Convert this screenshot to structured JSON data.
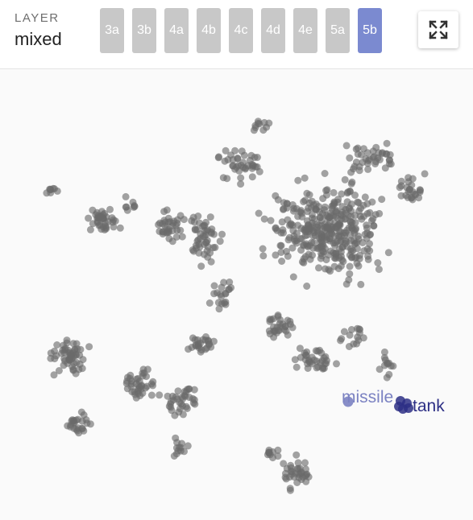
{
  "header": {
    "layer_caption": "LAYER",
    "layer_value": "mixed",
    "layers": [
      "3a",
      "3b",
      "4a",
      "4b",
      "4c",
      "4d",
      "4e",
      "5a",
      "5b"
    ],
    "active_layer": "5b"
  },
  "colors": {
    "active_button": "#7b8ad0",
    "inactive_button": "#c8c8c8",
    "point": "#6b6b6b",
    "label_missile": "#7b82c2",
    "label_tank": "#2d2f85"
  },
  "icons": {
    "fullscreen": "expand-arrows-icon"
  },
  "plot": {
    "highlighted": [
      {
        "label": "missile"
      },
      {
        "label": "tank"
      }
    ]
  }
}
